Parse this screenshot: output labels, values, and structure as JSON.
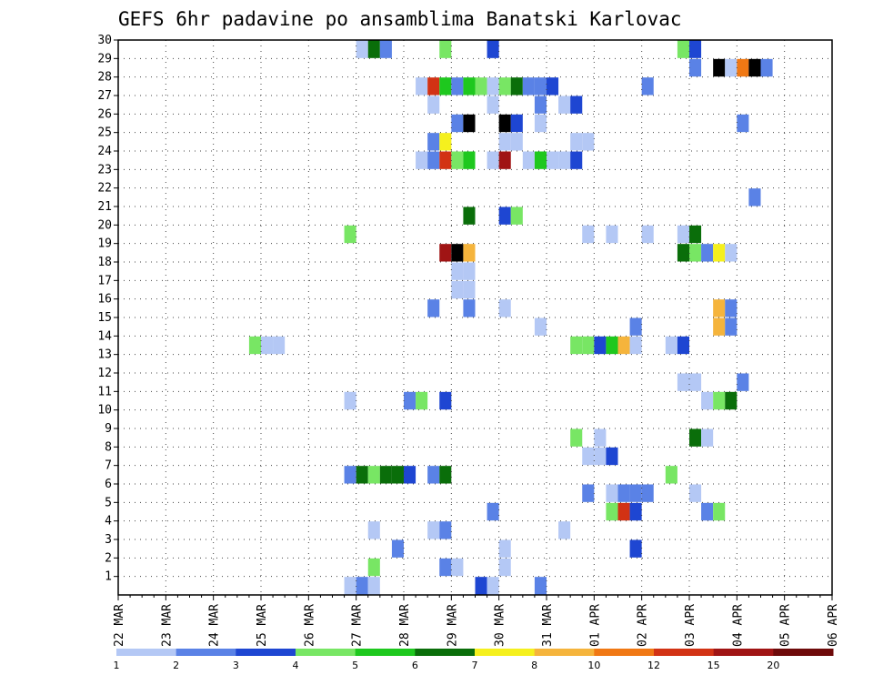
{
  "chart_data": {
    "type": "heatmap",
    "title": "GEFS 6hr padavine po ansamblima Banatski Karlovac",
    "xlabel": "",
    "ylabel": "",
    "x_tick_labels": [
      "22 MAR",
      "23 MAR",
      "24 MAR",
      "25 MAR",
      "26 MAR",
      "27 MAR",
      "28 MAR",
      "29 MAR",
      "30 MAR",
      "31 MAR",
      "01 APR",
      "02 APR",
      "03 APR",
      "04 APR",
      "05 APR",
      "06 APR"
    ],
    "y_tick_labels": [
      "1",
      "2",
      "3",
      "4",
      "5",
      "6",
      "7",
      "8",
      "9",
      "10",
      "11",
      "12",
      "13",
      "14",
      "15",
      "16",
      "17",
      "18",
      "19",
      "20",
      "21",
      "22",
      "23",
      "24",
      "25",
      "26",
      "27",
      "28",
      "29",
      "30"
    ],
    "y_range": [
      0,
      30
    ],
    "x_range_days": [
      0,
      15
    ],
    "step_hours": 6,
    "grid": true,
    "colorbar": {
      "labels": [
        "1",
        "2",
        "3",
        "4",
        "5",
        "6",
        "7",
        "8",
        "10",
        "12",
        "15",
        "20"
      ],
      "colors": [
        "#b4c8f5",
        "#5a82e6",
        "#1e46d2",
        "#78e664",
        "#1ec81e",
        "#0a6e0a",
        "#f5f01e",
        "#f5b43c",
        "#f07814",
        "#d23214",
        "#a01414",
        "#6e0a0a"
      ]
    },
    "cells": [
      [
        0,
        26.75,
        1
      ],
      [
        0,
        27.0,
        2
      ],
      [
        0,
        27.25,
        1
      ],
      [
        0,
        29.5,
        3
      ],
      [
        0,
        29.75,
        1
      ],
      [
        0,
        30.75,
        2
      ],
      [
        1,
        27.25,
        4
      ],
      [
        1,
        28.75,
        2
      ],
      [
        1,
        30.0,
        1
      ],
      [
        1,
        29.0,
        1
      ],
      [
        2,
        27.75,
        2
      ],
      [
        2,
        30.0,
        1
      ],
      [
        2,
        32.75,
        3
      ],
      [
        3,
        27.25,
        1
      ],
      [
        3,
        28.5,
        1
      ],
      [
        3,
        28.75,
        2
      ],
      [
        3,
        31.25,
        1
      ],
      [
        4,
        29.75,
        2
      ],
      [
        4,
        32.25,
        4
      ],
      [
        4,
        32.5,
        10
      ],
      [
        4,
        32.75,
        3
      ],
      [
        4,
        34.25,
        2
      ],
      [
        4,
        34.5,
        4
      ],
      [
        5,
        31.75,
        2
      ],
      [
        5,
        32.25,
        1
      ],
      [
        5,
        32.5,
        2
      ],
      [
        5,
        32.75,
        2
      ],
      [
        5,
        33.0,
        2
      ],
      [
        5,
        34.0,
        1
      ],
      [
        6,
        26.75,
        2
      ],
      [
        6,
        27.0,
        6
      ],
      [
        6,
        27.25,
        4
      ],
      [
        6,
        27.5,
        6
      ],
      [
        6,
        27.75,
        6
      ],
      [
        6,
        28.0,
        3
      ],
      [
        6,
        28.5,
        2
      ],
      [
        6,
        28.75,
        6
      ],
      [
        6,
        33.5,
        4
      ],
      [
        7,
        31.75,
        1
      ],
      [
        7,
        32.0,
        1
      ],
      [
        7,
        32.25,
        3
      ],
      [
        8,
        31.5,
        4
      ],
      [
        8,
        32.0,
        1
      ],
      [
        8,
        34.0,
        6
      ],
      [
        8,
        34.25,
        1
      ],
      [
        10,
        26.75,
        1
      ],
      [
        10,
        28.0,
        2
      ],
      [
        10,
        28.25,
        4
      ],
      [
        10,
        28.75,
        3
      ],
      [
        10,
        34.25,
        1
      ],
      [
        10,
        34.5,
        4
      ],
      [
        10,
        34.75,
        6
      ],
      [
        11,
        33.75,
        1
      ],
      [
        11,
        34.0,
        1
      ],
      [
        11,
        35.0,
        2
      ],
      [
        13,
        24.75,
        4
      ],
      [
        13,
        25.0,
        1
      ],
      [
        13,
        25.25,
        1
      ],
      [
        13,
        31.5,
        4
      ],
      [
        13,
        31.75,
        4
      ],
      [
        13,
        32.0,
        3
      ],
      [
        13,
        32.25,
        5
      ],
      [
        13,
        32.5,
        8
      ],
      [
        13,
        32.75,
        1
      ],
      [
        13,
        33.5,
        1
      ],
      [
        13,
        33.75,
        3
      ],
      [
        14,
        30.75,
        1
      ],
      [
        14,
        32.75,
        2
      ],
      [
        14,
        34.5,
        8
      ],
      [
        14,
        34.75,
        2
      ],
      [
        15,
        28.5,
        2
      ],
      [
        15,
        29.25,
        2
      ],
      [
        15,
        30.0,
        1
      ],
      [
        15,
        34.5,
        8
      ],
      [
        15,
        34.75,
        2
      ],
      [
        16,
        29.0,
        1
      ],
      [
        16,
        29.25,
        1
      ],
      [
        17,
        29.0,
        1
      ],
      [
        17,
        29.25,
        1
      ],
      [
        18,
        28.75,
        11
      ],
      [
        18,
        29.0,
        15
      ],
      [
        18,
        29.25,
        8
      ],
      [
        18,
        33.75,
        6
      ],
      [
        18,
        34.0,
        4
      ],
      [
        18,
        34.25,
        2
      ],
      [
        18,
        34.5,
        7
      ],
      [
        18,
        34.75,
        1
      ],
      [
        19,
        26.75,
        4
      ],
      [
        19,
        31.75,
        1
      ],
      [
        19,
        32.25,
        1
      ],
      [
        19,
        33.0,
        1
      ],
      [
        19,
        33.75,
        1
      ],
      [
        19,
        34.0,
        6
      ],
      [
        20,
        29.25,
        6
      ],
      [
        20,
        30.0,
        3
      ],
      [
        20,
        30.25,
        4
      ],
      [
        21,
        35.25,
        2
      ],
      [
        23,
        28.25,
        1
      ],
      [
        23,
        28.5,
        2
      ],
      [
        23,
        28.75,
        10
      ],
      [
        23,
        29.0,
        4
      ],
      [
        23,
        29.25,
        5
      ],
      [
        23,
        29.75,
        1
      ],
      [
        23,
        30.0,
        11
      ],
      [
        23,
        30.5,
        1
      ],
      [
        23,
        30.75,
        5
      ],
      [
        23,
        31.0,
        1
      ],
      [
        23,
        31.25,
        1
      ],
      [
        23,
        31.5,
        3
      ],
      [
        24,
        28.5,
        2
      ],
      [
        24,
        28.75,
        7
      ],
      [
        24,
        30.0,
        1
      ],
      [
        24,
        30.25,
        1
      ],
      [
        24,
        31.5,
        1
      ],
      [
        24,
        31.75,
        1
      ],
      [
        25,
        29.0,
        2
      ],
      [
        25,
        29.25,
        14
      ],
      [
        25,
        30.0,
        20
      ],
      [
        25,
        30.25,
        3
      ],
      [
        25,
        30.75,
        1
      ],
      [
        25,
        35.0,
        2
      ],
      [
        26,
        28.5,
        1
      ],
      [
        26,
        29.75,
        1
      ],
      [
        26,
        30.75,
        2
      ],
      [
        26,
        31.25,
        1
      ],
      [
        26,
        31.5,
        3
      ],
      [
        27,
        28.25,
        1
      ],
      [
        27,
        28.5,
        10
      ],
      [
        27,
        28.75,
        5
      ],
      [
        27,
        29.0,
        2
      ],
      [
        27,
        29.25,
        5
      ],
      [
        27,
        29.5,
        4
      ],
      [
        27,
        29.75,
        1
      ],
      [
        27,
        30.0,
        4
      ],
      [
        27,
        30.25,
        6
      ],
      [
        27,
        30.5,
        2
      ],
      [
        27,
        30.75,
        2
      ],
      [
        27,
        31.0,
        3
      ],
      [
        27,
        33.0,
        2
      ],
      [
        28,
        34.0,
        2
      ],
      [
        28,
        34.5,
        15
      ],
      [
        28,
        34.75,
        1
      ],
      [
        28,
        35.0,
        9
      ],
      [
        28,
        35.25,
        20
      ],
      [
        28,
        35.5,
        2
      ],
      [
        29,
        27.0,
        1
      ],
      [
        29,
        27.25,
        6
      ],
      [
        29,
        27.5,
        2
      ],
      [
        29,
        28.75,
        4
      ],
      [
        29,
        29.75,
        3
      ],
      [
        29,
        33.75,
        4
      ],
      [
        29,
        34.0,
        3
      ]
    ]
  }
}
